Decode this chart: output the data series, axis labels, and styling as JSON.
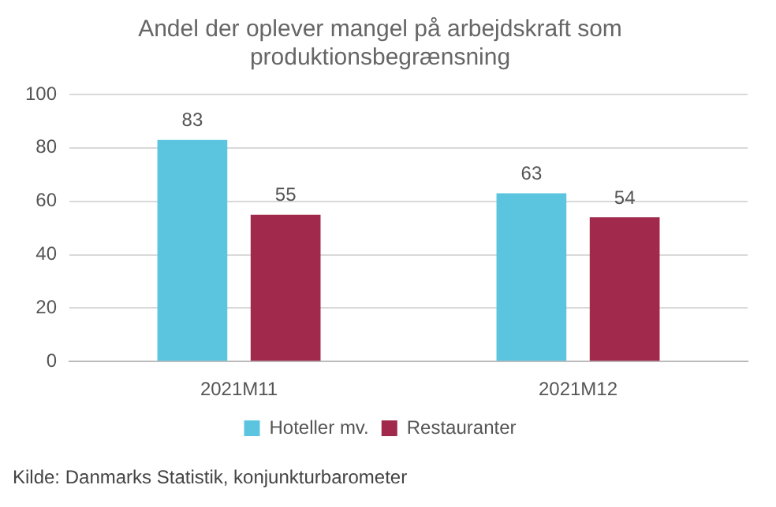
{
  "chart_data": {
    "type": "bar",
    "title": "Andel der oplever mangel på arbejdskraft som produktionsbegrænsning",
    "categories": [
      "2021M11",
      "2021M12"
    ],
    "series": [
      {
        "name": "Hoteller mv.",
        "color": "#5bc5e0",
        "values": [
          83,
          63
        ]
      },
      {
        "name": "Restauranter",
        "color": "#a0294c",
        "values": [
          55,
          54
        ]
      }
    ],
    "ylim": [
      0,
      100
    ],
    "yticks": [
      0,
      20,
      40,
      60,
      80,
      100
    ],
    "grid": "y",
    "legend": "bottom",
    "data_labels": true,
    "annotations": [
      "Kilde: Danmarks Statistik, konjunkturbarometer"
    ]
  }
}
